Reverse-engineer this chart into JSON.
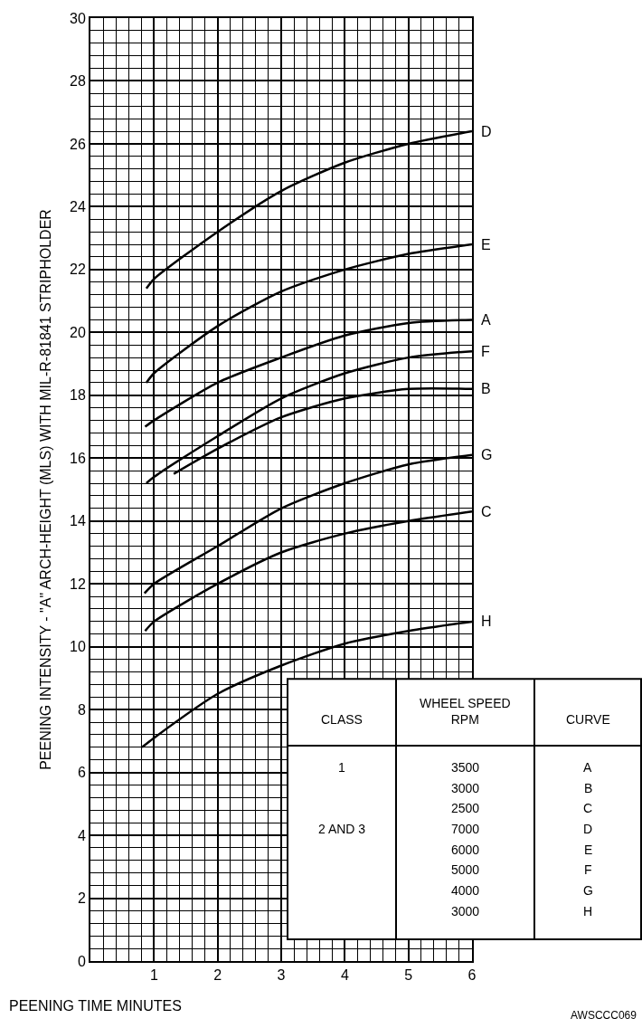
{
  "chart_data": {
    "type": "line",
    "xlabel": "PEENING TIME MINUTES",
    "ylabel": "PEENING INTENSITY - \"A\" ARCH-HEIGHT (MLS) WITH MIL-R-81841 STRIPHOLDER",
    "xlim": [
      0,
      6
    ],
    "xticks": [
      1,
      2,
      3,
      4,
      5,
      6
    ],
    "ylim": [
      0,
      30
    ],
    "yticks": [
      0,
      2,
      4,
      6,
      8,
      10,
      12,
      14,
      16,
      18,
      20,
      22,
      24,
      26,
      28,
      30
    ],
    "grid": true,
    "legend": false,
    "marker": "none",
    "line_style": "solid",
    "series": [
      {
        "name": "A",
        "color": "#000000",
        "x": [
          0.86,
          1,
          2,
          3,
          4,
          5,
          6
        ],
        "values": [
          17.0,
          17.2,
          18.4,
          19.2,
          19.9,
          20.3,
          20.4
        ]
      },
      {
        "name": "B",
        "color": "#000000",
        "x": [
          1.31,
          2,
          3,
          4,
          5,
          6
        ],
        "values": [
          15.5,
          16.3,
          17.3,
          17.9,
          18.2,
          18.2
        ]
      },
      {
        "name": "C",
        "color": "#000000",
        "x": [
          0.86,
          1,
          2,
          3,
          4,
          5,
          6
        ],
        "values": [
          10.5,
          10.8,
          12.0,
          13.0,
          13.6,
          14.0,
          14.3
        ]
      },
      {
        "name": "D",
        "color": "#000000",
        "x": [
          0.88,
          1,
          2,
          3,
          4,
          5,
          6
        ],
        "values": [
          21.4,
          21.7,
          23.2,
          24.5,
          25.4,
          26.0,
          26.4
        ]
      },
      {
        "name": "E",
        "color": "#000000",
        "x": [
          0.88,
          1,
          2,
          3,
          4,
          5,
          6
        ],
        "values": [
          18.4,
          18.7,
          20.2,
          21.3,
          22.0,
          22.5,
          22.8
        ]
      },
      {
        "name": "F",
        "color": "#000000",
        "x": [
          0.88,
          1,
          2,
          3,
          4,
          5,
          6
        ],
        "values": [
          15.2,
          15.4,
          16.7,
          17.9,
          18.7,
          19.2,
          19.4
        ]
      },
      {
        "name": "G",
        "color": "#000000",
        "x": [
          0.85,
          1,
          2,
          3,
          4,
          5,
          6
        ],
        "values": [
          11.7,
          12.0,
          13.2,
          14.4,
          15.2,
          15.8,
          16.1
        ]
      },
      {
        "name": "H",
        "color": "#000000",
        "x": [
          0.81,
          1,
          2,
          3,
          4,
          5,
          6
        ],
        "values": [
          6.8,
          7.1,
          8.5,
          9.4,
          10.1,
          10.5,
          10.8
        ]
      }
    ],
    "annotations": [
      "CLASS",
      "WHEEL SPEED\nRPM",
      "CURVE",
      "1",
      "2 AND 3",
      "3500",
      "3000",
      "2500",
      "7000",
      "6000",
      "5000",
      "4000",
      "3000",
      "AWSCCC069"
    ]
  }
}
